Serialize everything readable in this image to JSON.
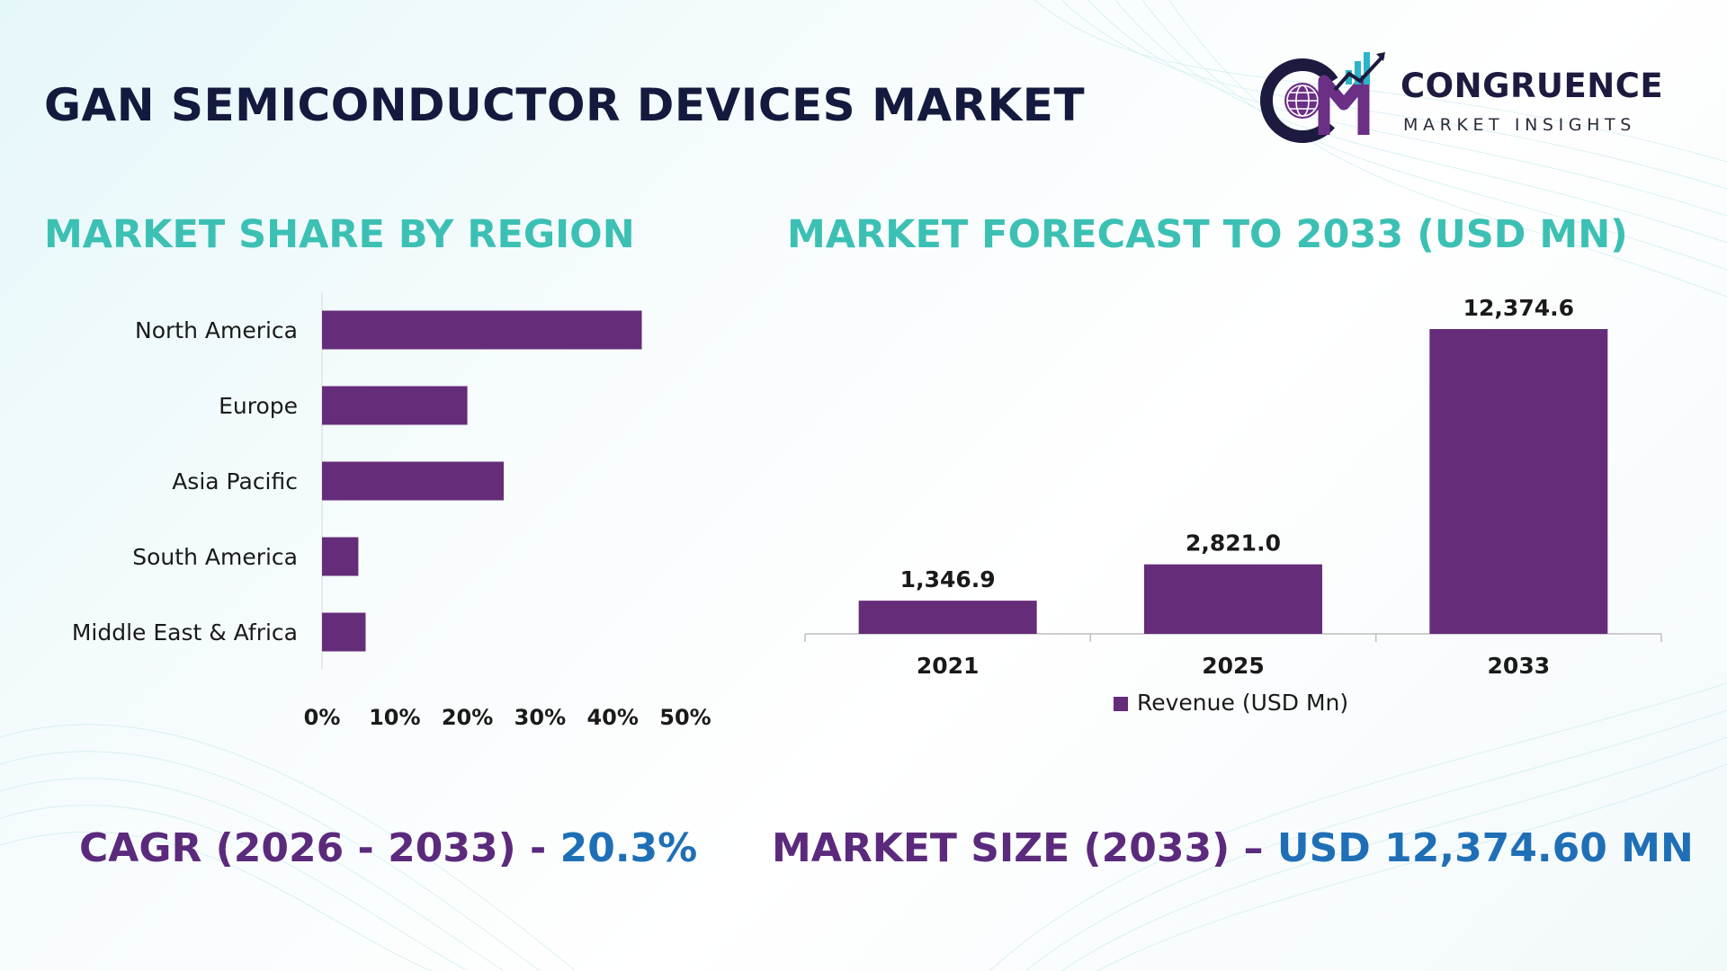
{
  "header": {
    "title": "GAN SEMICONDUCTOR DEVICES MARKET"
  },
  "logo": {
    "name": "CONGRUENCE",
    "tagline": "MARKET INSIGHTS",
    "colors": {
      "teal": "#2bb5c9",
      "purple": "#6b2f86",
      "navy": "#1c1b3f"
    }
  },
  "sections": {
    "region_title": "MARKET SHARE BY REGION",
    "forecast_title": "MARKET FORECAST TO 2033 (USD MN)"
  },
  "chart_data": [
    {
      "type": "bar",
      "orientation": "horizontal",
      "title": "MARKET SHARE BY REGION",
      "categories": [
        "North America",
        "Europe",
        "Asia Pacific",
        "South America",
        "Middle East & Africa"
      ],
      "values": [
        44,
        20,
        25,
        5,
        6
      ],
      "unit": "%",
      "xlim": [
        0,
        50
      ],
      "x_ticks": [
        "0%",
        "10%",
        "20%",
        "30%",
        "40%",
        "50%"
      ],
      "grid": false,
      "color": "#652d79"
    },
    {
      "type": "bar",
      "orientation": "vertical",
      "title": "MARKET FORECAST TO 2033 (USD MN)",
      "categories": [
        "2021",
        "2025",
        "2033"
      ],
      "series": [
        {
          "name": "Revenue (USD Mn)",
          "values": [
            1346.9,
            2821.0,
            12374.6
          ]
        }
      ],
      "data_labels": [
        "1,346.9",
        "2,821.0",
        "12,374.6"
      ],
      "ylim": [
        0,
        12374.6
      ],
      "legend": "bottom",
      "grid": false,
      "color": "#652d79"
    }
  ],
  "footer": {
    "cagr_label": "CAGR (2026 - 2033) - ",
    "cagr_value": "20.3%",
    "size_label": "MARKET SIZE (2033) – ",
    "size_value": "USD 12,374.60 MN"
  }
}
